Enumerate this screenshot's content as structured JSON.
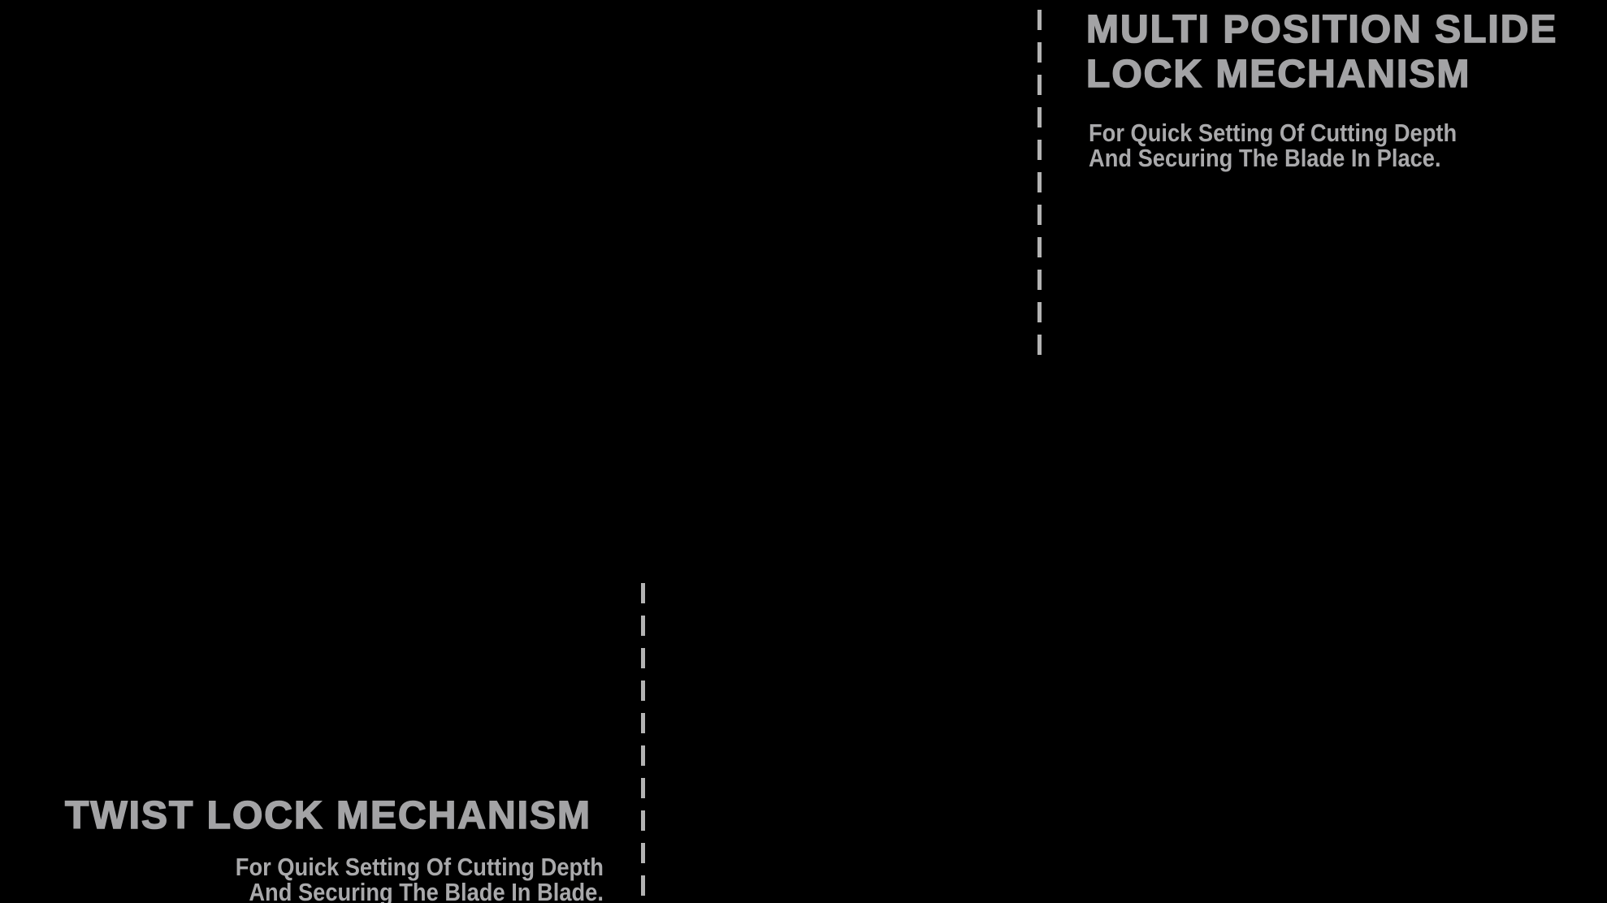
{
  "page": {
    "background": "#000000"
  },
  "colors": {
    "heading_text": "#a3a3a5",
    "body_text": "#a9a9ab",
    "leader_line": "#b3b3b3",
    "background": "#000000"
  },
  "callouts": [
    {
      "id": "multi-position-slide-lock",
      "title_lines": [
        "MULTI POSITION SLIDE",
        "LOCK MECHANISM"
      ],
      "description_lines": [
        "For Quick Setting Of Cutting Depth",
        "And Securing The Blade In Place."
      ]
    },
    {
      "id": "twist-lock",
      "title_lines": [
        "TWIST LOCK MECHANISM"
      ],
      "description_lines": [
        "For Quick Setting Of Cutting Depth",
        "And Securing The Blade In Blade."
      ]
    }
  ]
}
